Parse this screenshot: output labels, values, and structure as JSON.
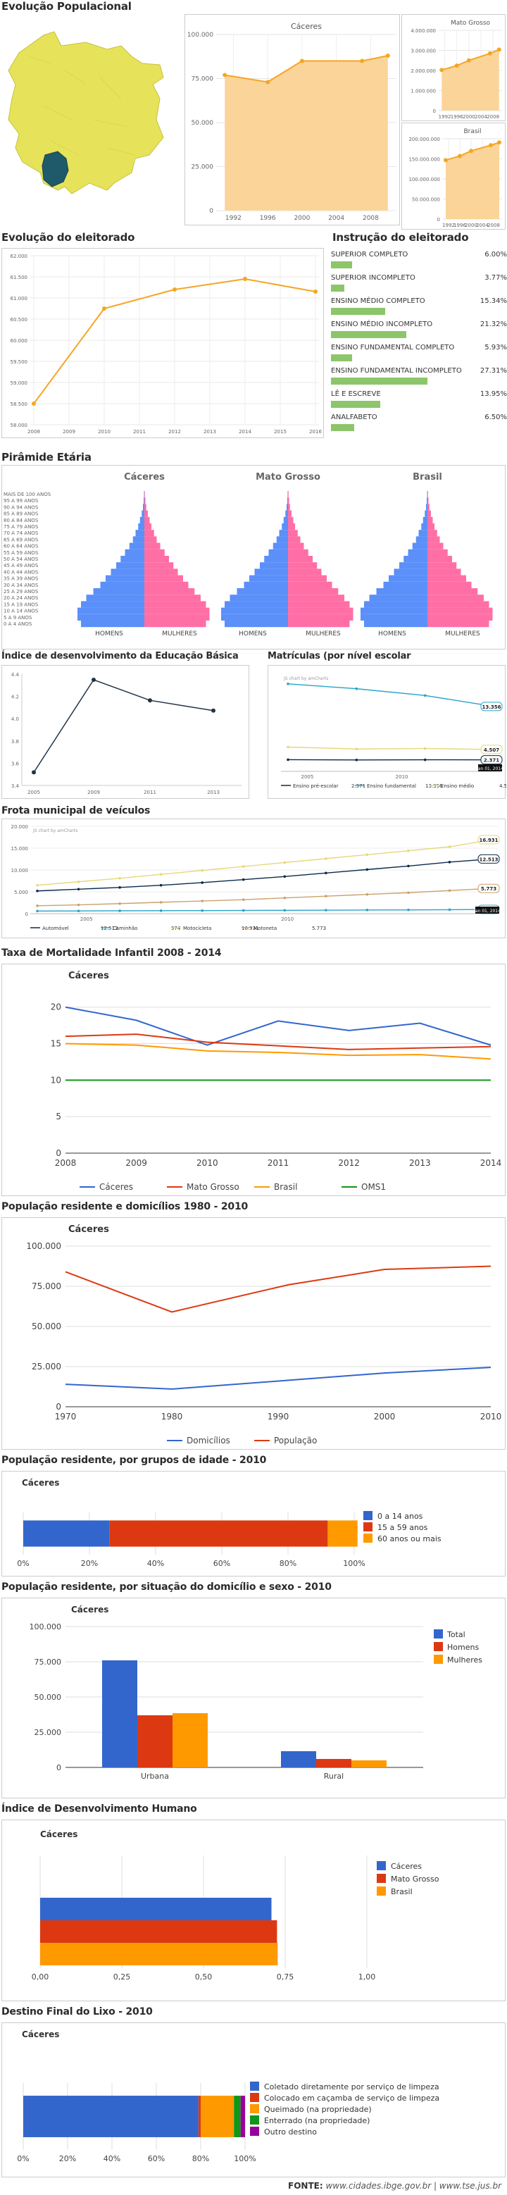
{
  "sections": {
    "evolucao": "Evolução Populacional",
    "eleitorado": "Evolução do eleitorado",
    "instrucao": "Instrução do eleitorado",
    "piramide": "Pirâmide Etária",
    "ideb": "Índice de desenvolvimento da Educação Básica",
    "matriculas": "Matrículas (por nível escolar",
    "frota": "Frota municipal de veículos",
    "mortalidade": "Taxa de Mortalidade Infantil 2008 - 2014",
    "residente": "População residente e domicílios 1980 - 2010",
    "grupos": "População residente, por grupos de idade - 2010",
    "situacao": "População residente, por situação do domicílio e sexo - 2010",
    "idh": "Índice de Desenvolvimento Humano",
    "lixo": "Destino Final do Lixo - 2010"
  },
  "colors": {
    "orange": "#f5a623",
    "fill": "#fbd49a",
    "blue": "#3366cc",
    "red": "#dc3912",
    "yellow": "#ff9900",
    "green": "#109618",
    "purple": "#990099",
    "pink": "#ff6fa5",
    "pblue": "#5b8ff9",
    "edu": "#8dc56b"
  },
  "footer": {
    "label": "FONTE:",
    "sites": "www.cidades.ibge.gov.br | www.tse.jus.br"
  },
  "chart_data": [
    {
      "id": "pop_caceres",
      "type": "area",
      "title": "Cáceres",
      "x": [
        1991,
        1996,
        2000,
        2007,
        2010
      ],
      "xticks": [
        "1992",
        "1996",
        "2000",
        "2004",
        "2008"
      ],
      "values": [
        77000,
        73000,
        85000,
        85000,
        88000
      ],
      "ylim": [
        0,
        100000
      ],
      "yticks": [
        "0",
        "25.000",
        "50.000",
        "75.000",
        "100.000"
      ]
    },
    {
      "id": "pop_mt",
      "type": "area",
      "title": "Mato Grosso",
      "x": [
        1991,
        1996,
        2000,
        2007,
        2010
      ],
      "xticks": [
        "1992",
        "1996",
        "2000",
        "2004",
        "2008"
      ],
      "values": [
        2020000,
        2240000,
        2500000,
        2850000,
        3040000
      ],
      "ylim": [
        0,
        4000000
      ],
      "yticks": [
        "0",
        "1.000.000",
        "2.000.000",
        "3.000.000",
        "4.000.000"
      ]
    },
    {
      "id": "pop_br",
      "type": "area",
      "title": "Brasil",
      "x": [
        1991,
        1996,
        2000,
        2007,
        2010
      ],
      "xticks": [
        "1992",
        "1996",
        "2000",
        "2004",
        "2008"
      ],
      "values": [
        146800000,
        157100000,
        169800000,
        183900000,
        190800000
      ],
      "ylim": [
        0,
        200000000
      ],
      "yticks": [
        "0",
        "50.000.000",
        "100.000.000",
        "150.000.000",
        "200.000.000"
      ]
    },
    {
      "id": "eleitorado",
      "type": "line",
      "x": [
        2008,
        2010,
        2012,
        2014,
        2016
      ],
      "xticks": [
        "2008",
        "2009",
        "2010",
        "2011",
        "2012",
        "2013",
        "2014",
        "2015",
        "2016"
      ],
      "values": [
        58500,
        60750,
        61200,
        61450,
        61150
      ],
      "ylim": [
        58000,
        62000
      ],
      "yticks": [
        "58.000",
        "58.500",
        "59.000",
        "59.500",
        "60.000",
        "60.500",
        "61.000",
        "61.500",
        "62.000"
      ]
    },
    {
      "id": "instrucao",
      "type": "bar",
      "categories": [
        "SUPERIOR COMPLETO",
        "SUPERIOR INCOMPLETO",
        "ENSINO MÉDIO COMPLETO",
        "ENSINO MÉDIO INCOMPLETO",
        "ENSINO FUNDAMENTAL COMPLETO",
        "ENSINO FUNDAMENTAL INCOMPLETO",
        "LÊ E ESCREVE",
        "ANALFABETO"
      ],
      "values": [
        6.0,
        3.77,
        15.34,
        21.32,
        5.93,
        27.31,
        13.95,
        6.5
      ],
      "labels": [
        "6.00%",
        "3.77%",
        "15.34%",
        "21.32%",
        "5.93%",
        "27.31%",
        "13.95%",
        "6.50%"
      ]
    },
    {
      "id": "piramide",
      "type": "bar",
      "titles": [
        "Cáceres",
        "Mato Grosso",
        "Brasil"
      ],
      "categories": [
        "MAIS DE 100 ANOS",
        "95 A 99 ANOS",
        "90 A 94 ANOS",
        "85 A 89 ANOS",
        "80 A 84 ANOS",
        "75 A 79 ANOS",
        "70 A 74 ANOS",
        "65 A 69 ANOS",
        "60 A 64 ANOS",
        "55 A 59 ANOS",
        "50 A 54 ANOS",
        "45 A 49 ANOS",
        "40 A 44 ANOS",
        "35 A 39 ANOS",
        "30 A 34 ANOS",
        "25 A 29 ANOS",
        "20 A 24 ANOS",
        "15 A 19 ANOS",
        "10 A 14 ANOS",
        "5 A 9 ANOS",
        "0 A 4 ANOS"
      ],
      "series": [
        {
          "name": "HOMENS",
          "values": [
            0.2,
            0.4,
            0.8,
            1.5,
            2.5,
            3.5,
            5,
            6.5,
            8.5,
            11,
            13.5,
            16,
            19,
            22,
            25,
            29,
            33,
            36,
            38,
            38,
            36
          ]
        },
        {
          "name": "MULHERES",
          "values": [
            0.3,
            0.6,
            1.1,
            2,
            3,
            4,
            5.5,
            7,
            9,
            11.5,
            14,
            16.5,
            19,
            22,
            25,
            28.5,
            32,
            35,
            37,
            37,
            35
          ]
        }
      ]
    },
    {
      "id": "ideb",
      "type": "line",
      "x": [
        2005,
        2009,
        2011,
        2013
      ],
      "xticks": [
        "2005",
        "2009",
        "2011",
        "2013"
      ],
      "values": [
        3.5,
        4.4,
        4.2,
        4.1
      ],
      "ylim": [
        3.4,
        4.4
      ],
      "yticks": [
        "3.4",
        "3.6",
        "3.8",
        "4.0",
        "4.2",
        "4.4"
      ]
    },
    {
      "id": "matriculas",
      "type": "line",
      "note": "JS chart by amCharts",
      "xticks": [
        "2005",
        "2010"
      ],
      "series": [
        {
          "name": "Ensino pré-escolar",
          "values": [
            2400,
            2350,
            2380,
            2371
          ],
          "label": "2.371"
        },
        {
          "name": "Ensino fundamental",
          "values": [
            18000,
            17000,
            15600,
            13356
          ],
          "label": "13.356"
        },
        {
          "name": "Ensino médio",
          "values": [
            5000,
            4600,
            4700,
            4507
          ],
          "label": "4.507"
        }
      ],
      "ylim": [
        0,
        20000
      ],
      "date": "Jan 01, 2014"
    },
    {
      "id": "frota",
      "type": "line",
      "note": "JS chart by amCharts",
      "xticks": [
        "2005",
        "2010"
      ],
      "yticks": [
        "0",
        "5.000",
        "10.000",
        "15.000",
        "20.000"
      ],
      "ylim": [
        0,
        20000
      ],
      "series": [
        {
          "name": "Automóvel",
          "values": [
            5200,
            5600,
            6000,
            6500,
            7100,
            7800,
            8500,
            9300,
            10100,
            10900,
            11800,
            12513
          ],
          "label": "12.513"
        },
        {
          "name": "Caminhão",
          "values": [
            600,
            620,
            650,
            680,
            700,
            730,
            760,
            800,
            830,
            860,
            900,
            974
          ],
          "label": "974"
        },
        {
          "name": "Motocicleta",
          "values": [
            6500,
            7300,
            8100,
            9000,
            9900,
            10800,
            11700,
            12600,
            13500,
            14400,
            15300,
            16931
          ],
          "label": "16.931"
        },
        {
          "name": "Motoneta",
          "values": [
            1800,
            2000,
            2300,
            2600,
            2900,
            3200,
            3600,
            4000,
            4400,
            4800,
            5300,
            5773
          ],
          "label": "5.773"
        }
      ],
      "date": "Jan 01, 2014"
    },
    {
      "id": "mortalidade",
      "type": "line",
      "title": "Cáceres",
      "x": [
        2008,
        2009,
        2010,
        2011,
        2012,
        2013,
        2014
      ],
      "xticks": [
        "2008",
        "2009",
        "2010",
        "2011",
        "2012",
        "2013",
        "2014"
      ],
      "yticks": [
        "0",
        "5",
        "10",
        "15",
        "20"
      ],
      "ylim": [
        0,
        22
      ],
      "series": [
        {
          "name": "Cáceres",
          "values": [
            20,
            18.2,
            14.8,
            18.1,
            16.8,
            17.8,
            14.8
          ]
        },
        {
          "name": "Mato Grosso",
          "values": [
            16,
            16.3,
            15.2,
            14.7,
            14.2,
            14.4,
            14.6
          ]
        },
        {
          "name": "Brasil",
          "values": [
            15,
            14.8,
            14,
            13.8,
            13.4,
            13.5,
            12.9
          ]
        },
        {
          "name": "OMS1",
          "values": [
            10,
            10,
            10,
            10,
            10,
            10,
            10
          ]
        }
      ]
    },
    {
      "id": "residente",
      "type": "line",
      "title": "Cáceres",
      "x": [
        1970,
        1980,
        1991,
        2000,
        2010
      ],
      "xticks": [
        "1970",
        "1980",
        "1990",
        "2000",
        "2010"
      ],
      "yticks": [
        "0",
        "25.000",
        "50.000",
        "75.000",
        "100.000"
      ],
      "ylim": [
        0,
        100000
      ],
      "series": [
        {
          "name": "Domicílios",
          "values": [
            14000,
            11000,
            16500,
            21000,
            24500
          ]
        },
        {
          "name": "População",
          "values": [
            84000,
            59000,
            76000,
            85500,
            87500
          ]
        }
      ]
    },
    {
      "id": "grupos",
      "type": "bar",
      "title": "Cáceres",
      "stacked": true,
      "xticks": [
        "0%",
        "20%",
        "40%",
        "60%",
        "80%",
        "100%"
      ],
      "series": [
        {
          "name": "0 a 14 anos",
          "value": 26
        },
        {
          "name": "15 a 59 anos",
          "value": 66
        },
        {
          "name": "60 anos ou mais",
          "value": 9
        }
      ]
    },
    {
      "id": "situacao",
      "type": "bar",
      "title": "Cáceres",
      "categories": [
        "Urbana",
        "Rural"
      ],
      "yticks": [
        "0",
        "25.000",
        "50.000",
        "75.000",
        "100.000"
      ],
      "ylim": [
        0,
        100000
      ],
      "series": [
        {
          "name": "Total",
          "values": [
            76000,
            11500
          ]
        },
        {
          "name": "Homens",
          "values": [
            37000,
            6000
          ]
        },
        {
          "name": "Mulheres",
          "values": [
            38500,
            5000
          ]
        }
      ]
    },
    {
      "id": "idh",
      "type": "bar",
      "title": "Cáceres",
      "xticks": [
        "0,00",
        "0,25",
        "0,50",
        "0,75",
        "1,00"
      ],
      "xlim": [
        0,
        1
      ],
      "series": [
        {
          "name": "Cáceres",
          "value": 0.708
        },
        {
          "name": "Mato Grosso",
          "value": 0.725
        },
        {
          "name": "Brasil",
          "value": 0.727
        }
      ]
    },
    {
      "id": "lixo",
      "type": "bar",
      "title": "Cáceres",
      "stacked": true,
      "xticks": [
        "0%",
        "20%",
        "40%",
        "60%",
        "80%",
        "100%"
      ],
      "series": [
        {
          "name": "Coletado diretamente por serviço de limpeza",
          "value": 79
        },
        {
          "name": "Colocado em caçamba de serviço de limpeza",
          "value": 1
        },
        {
          "name": "Queimado (na propriedade)",
          "value": 15
        },
        {
          "name": "Enterrado (na propriedade)",
          "value": 3
        },
        {
          "name": "Outro destino",
          "value": 2
        }
      ]
    }
  ]
}
